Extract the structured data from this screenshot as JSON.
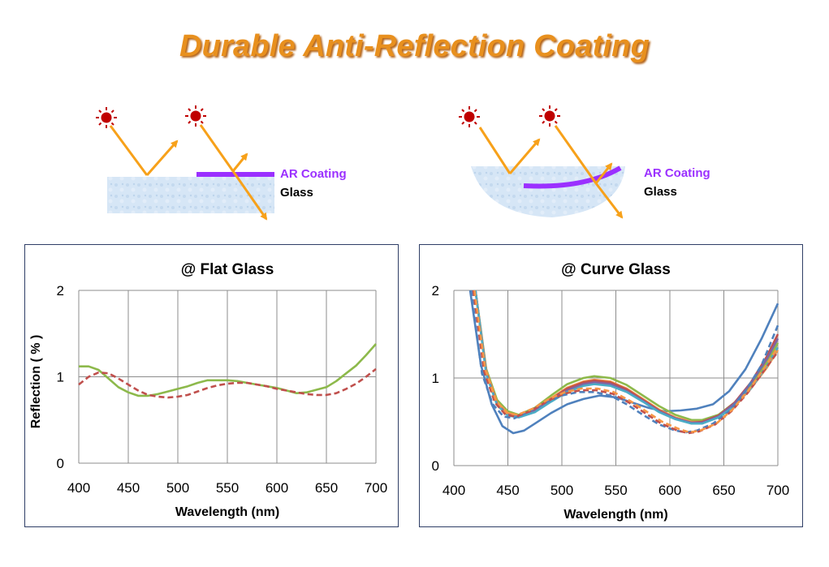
{
  "title": "Durable Anti-Reflection Coating",
  "diagram": {
    "coating_label": "AR Coating",
    "glass_label": "Glass",
    "colors": {
      "coating": "#9b30ff",
      "ray": "#f7a11a",
      "sun": "#c00000",
      "glass": "#cfe2f5"
    }
  },
  "chart_data": [
    {
      "type": "line",
      "title": "@ Flat Glass",
      "xlabel": "Wavelength (nm)",
      "ylabel": "Reflection ( % )",
      "xlim": [
        400,
        700
      ],
      "ylim": [
        0,
        2
      ],
      "xticks": [
        400,
        450,
        500,
        550,
        600,
        650,
        700
      ],
      "yticks": [
        0,
        1,
        2
      ],
      "grid": true,
      "series": [
        {
          "color": "#8db94b",
          "dash": false,
          "points": [
            [
              400,
              1.12
            ],
            [
              410,
              1.12
            ],
            [
              420,
              1.08
            ],
            [
              430,
              0.98
            ],
            [
              440,
              0.88
            ],
            [
              450,
              0.82
            ],
            [
              460,
              0.78
            ],
            [
              470,
              0.78
            ],
            [
              480,
              0.8
            ],
            [
              490,
              0.83
            ],
            [
              500,
              0.86
            ],
            [
              510,
              0.89
            ],
            [
              520,
              0.93
            ],
            [
              530,
              0.96
            ],
            [
              540,
              0.96
            ],
            [
              550,
              0.96
            ],
            [
              560,
              0.95
            ],
            [
              570,
              0.93
            ],
            [
              580,
              0.91
            ],
            [
              590,
              0.89
            ],
            [
              600,
              0.87
            ],
            [
              610,
              0.84
            ],
            [
              620,
              0.81
            ],
            [
              630,
              0.82
            ],
            [
              640,
              0.85
            ],
            [
              650,
              0.88
            ],
            [
              660,
              0.95
            ],
            [
              670,
              1.04
            ],
            [
              680,
              1.13
            ],
            [
              690,
              1.25
            ],
            [
              700,
              1.38
            ]
          ]
        },
        {
          "color": "#c0504d",
          "dash": true,
          "points": [
            [
              400,
              0.91
            ],
            [
              410,
              1.0
            ],
            [
              420,
              1.05
            ],
            [
              430,
              1.04
            ],
            [
              440,
              0.98
            ],
            [
              450,
              0.91
            ],
            [
              460,
              0.84
            ],
            [
              470,
              0.79
            ],
            [
              480,
              0.77
            ],
            [
              490,
              0.76
            ],
            [
              500,
              0.77
            ],
            [
              510,
              0.79
            ],
            [
              520,
              0.83
            ],
            [
              530,
              0.87
            ],
            [
              540,
              0.9
            ],
            [
              550,
              0.92
            ],
            [
              560,
              0.93
            ],
            [
              570,
              0.93
            ],
            [
              580,
              0.91
            ],
            [
              590,
              0.89
            ],
            [
              600,
              0.86
            ],
            [
              610,
              0.84
            ],
            [
              620,
              0.82
            ],
            [
              630,
              0.8
            ],
            [
              640,
              0.79
            ],
            [
              650,
              0.79
            ],
            [
              660,
              0.81
            ],
            [
              670,
              0.86
            ],
            [
              680,
              0.92
            ],
            [
              690,
              1.0
            ],
            [
              700,
              1.09
            ]
          ]
        }
      ]
    },
    {
      "type": "line",
      "title": "@ Curve Glass",
      "xlabel": "Wavelength (nm)",
      "ylabel": "",
      "xlim": [
        400,
        700
      ],
      "ylim": [
        0,
        2
      ],
      "xticks": [
        400,
        450,
        500,
        550,
        600,
        650,
        700
      ],
      "yticks": [
        0,
        1,
        2
      ],
      "grid": true,
      "series": [
        {
          "color": "#4f81bd",
          "dash": false,
          "points": [
            [
              415,
              2.0
            ],
            [
              425,
              1.15
            ],
            [
              435,
              0.7
            ],
            [
              445,
              0.45
            ],
            [
              455,
              0.37
            ],
            [
              465,
              0.4
            ],
            [
              475,
              0.48
            ],
            [
              490,
              0.6
            ],
            [
              505,
              0.7
            ],
            [
              520,
              0.76
            ],
            [
              535,
              0.8
            ],
            [
              550,
              0.78
            ],
            [
              565,
              0.72
            ],
            [
              580,
              0.66
            ],
            [
              595,
              0.62
            ],
            [
              610,
              0.63
            ],
            [
              625,
              0.65
            ],
            [
              640,
              0.7
            ],
            [
              655,
              0.85
            ],
            [
              670,
              1.1
            ],
            [
              685,
              1.45
            ],
            [
              700,
              1.85
            ]
          ]
        },
        {
          "color": "#8db94b",
          "dash": false,
          "points": [
            [
              420,
              2.0
            ],
            [
              430,
              1.1
            ],
            [
              440,
              0.75
            ],
            [
              450,
              0.62
            ],
            [
              460,
              0.58
            ],
            [
              475,
              0.66
            ],
            [
              490,
              0.8
            ],
            [
              505,
              0.93
            ],
            [
              520,
              1.0
            ],
            [
              530,
              1.02
            ],
            [
              545,
              1.0
            ],
            [
              560,
              0.92
            ],
            [
              575,
              0.8
            ],
            [
              590,
              0.68
            ],
            [
              605,
              0.58
            ],
            [
              620,
              0.52
            ],
            [
              630,
              0.52
            ],
            [
              645,
              0.58
            ],
            [
              660,
              0.72
            ],
            [
              675,
              0.92
            ],
            [
              690,
              1.18
            ],
            [
              700,
              1.4
            ]
          ]
        },
        {
          "color": "#f79646",
          "dash": false,
          "points": [
            [
              420,
              2.0
            ],
            [
              430,
              1.08
            ],
            [
              440,
              0.72
            ],
            [
              450,
              0.6
            ],
            [
              460,
              0.57
            ],
            [
              475,
              0.64
            ],
            [
              490,
              0.77
            ],
            [
              505,
              0.89
            ],
            [
              520,
              0.96
            ],
            [
              530,
              0.98
            ],
            [
              545,
              0.96
            ],
            [
              560,
              0.88
            ],
            [
              575,
              0.76
            ],
            [
              590,
              0.64
            ],
            [
              605,
              0.55
            ],
            [
              620,
              0.5
            ],
            [
              630,
              0.5
            ],
            [
              645,
              0.56
            ],
            [
              660,
              0.69
            ],
            [
              675,
              0.88
            ],
            [
              690,
              1.12
            ],
            [
              700,
              1.32
            ]
          ]
        },
        {
          "color": "#c0504d",
          "dash": false,
          "points": [
            [
              420,
              2.0
            ],
            [
              430,
              1.06
            ],
            [
              440,
              0.7
            ],
            [
              450,
              0.58
            ],
            [
              460,
              0.56
            ],
            [
              475,
              0.63
            ],
            [
              490,
              0.76
            ],
            [
              505,
              0.88
            ],
            [
              520,
              0.95
            ],
            [
              530,
              0.97
            ],
            [
              545,
              0.95
            ],
            [
              560,
              0.87
            ],
            [
              575,
              0.75
            ],
            [
              590,
              0.63
            ],
            [
              605,
              0.54
            ],
            [
              620,
              0.49
            ],
            [
              630,
              0.5
            ],
            [
              645,
              0.57
            ],
            [
              660,
              0.72
            ],
            [
              675,
              0.95
            ],
            [
              690,
              1.25
            ],
            [
              700,
              1.5
            ]
          ]
        },
        {
          "color": "#8064a2",
          "dash": false,
          "points": [
            [
              420,
              2.0
            ],
            [
              430,
              1.05
            ],
            [
              440,
              0.7
            ],
            [
              450,
              0.58
            ],
            [
              460,
              0.56
            ],
            [
              475,
              0.62
            ],
            [
              490,
              0.75
            ],
            [
              505,
              0.86
            ],
            [
              520,
              0.93
            ],
            [
              530,
              0.95
            ],
            [
              545,
              0.93
            ],
            [
              560,
              0.85
            ],
            [
              575,
              0.74
            ],
            [
              590,
              0.62
            ],
            [
              605,
              0.54
            ],
            [
              620,
              0.49
            ],
            [
              630,
              0.49
            ],
            [
              645,
              0.56
            ],
            [
              660,
              0.71
            ],
            [
              675,
              0.94
            ],
            [
              690,
              1.22
            ],
            [
              700,
              1.45
            ]
          ]
        },
        {
          "color": "#4bacc6",
          "dash": false,
          "points": [
            [
              420,
              2.0
            ],
            [
              430,
              1.04
            ],
            [
              440,
              0.69
            ],
            [
              450,
              0.57
            ],
            [
              460,
              0.55
            ],
            [
              475,
              0.61
            ],
            [
              490,
              0.73
            ],
            [
              505,
              0.84
            ],
            [
              520,
              0.91
            ],
            [
              530,
              0.93
            ],
            [
              545,
              0.91
            ],
            [
              560,
              0.84
            ],
            [
              575,
              0.73
            ],
            [
              590,
              0.61
            ],
            [
              605,
              0.53
            ],
            [
              620,
              0.48
            ],
            [
              630,
              0.48
            ],
            [
              645,
              0.55
            ],
            [
              660,
              0.68
            ],
            [
              675,
              0.88
            ],
            [
              690,
              1.14
            ],
            [
              700,
              1.35
            ]
          ]
        },
        {
          "color": "#4f81bd",
          "dash": true,
          "points": [
            [
              416,
              2.0
            ],
            [
              426,
              1.05
            ],
            [
              436,
              0.7
            ],
            [
              446,
              0.56
            ],
            [
              456,
              0.54
            ],
            [
              470,
              0.62
            ],
            [
              485,
              0.72
            ],
            [
              500,
              0.8
            ],
            [
              515,
              0.84
            ],
            [
              530,
              0.84
            ],
            [
              545,
              0.8
            ],
            [
              560,
              0.7
            ],
            [
              575,
              0.58
            ],
            [
              590,
              0.47
            ],
            [
              605,
              0.4
            ],
            [
              615,
              0.38
            ],
            [
              625,
              0.4
            ],
            [
              640,
              0.48
            ],
            [
              655,
              0.62
            ],
            [
              670,
              0.85
            ],
            [
              685,
              1.15
            ],
            [
              700,
              1.6
            ]
          ]
        },
        {
          "color": "#c0504d",
          "dash": true,
          "points": [
            [
              418,
              2.0
            ],
            [
              428,
              1.08
            ],
            [
              438,
              0.72
            ],
            [
              448,
              0.58
            ],
            [
              458,
              0.56
            ],
            [
              472,
              0.63
            ],
            [
              487,
              0.74
            ],
            [
              502,
              0.82
            ],
            [
              517,
              0.86
            ],
            [
              532,
              0.86
            ],
            [
              547,
              0.82
            ],
            [
              562,
              0.72
            ],
            [
              577,
              0.6
            ],
            [
              592,
              0.48
            ],
            [
              607,
              0.4
            ],
            [
              617,
              0.37
            ],
            [
              627,
              0.39
            ],
            [
              642,
              0.47
            ],
            [
              657,
              0.62
            ],
            [
              672,
              0.83
            ],
            [
              687,
              1.08
            ],
            [
              700,
              1.3
            ]
          ]
        },
        {
          "color": "#f79646",
          "dash": true,
          "points": [
            [
              419,
              2.0
            ],
            [
              429,
              1.1
            ],
            [
              439,
              0.74
            ],
            [
              449,
              0.6
            ],
            [
              459,
              0.58
            ],
            [
              473,
              0.65
            ],
            [
              488,
              0.76
            ],
            [
              503,
              0.84
            ],
            [
              518,
              0.88
            ],
            [
              533,
              0.88
            ],
            [
              548,
              0.84
            ],
            [
              563,
              0.74
            ],
            [
              578,
              0.62
            ],
            [
              593,
              0.5
            ],
            [
              608,
              0.42
            ],
            [
              618,
              0.38
            ],
            [
              628,
              0.4
            ],
            [
              643,
              0.48
            ],
            [
              658,
              0.64
            ],
            [
              673,
              0.86
            ],
            [
              688,
              1.12
            ],
            [
              700,
              1.35
            ]
          ]
        }
      ]
    }
  ]
}
